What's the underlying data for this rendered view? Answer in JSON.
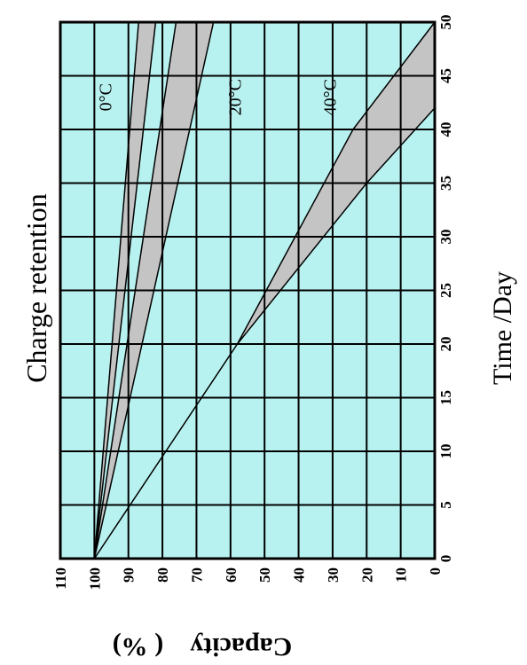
{
  "chart_data": {
    "type": "area",
    "title": "Charge retention",
    "xlabel": "Time /Day",
    "ylabel": "Capacity　( %)",
    "xlim": [
      0,
      50
    ],
    "ylim": [
      0,
      110
    ],
    "x_ticks": [
      "0",
      "5",
      "10",
      "15",
      "20",
      "25",
      "30",
      "35",
      "40",
      "45",
      "50"
    ],
    "y_ticks": [
      "110",
      "100",
      "90",
      "80",
      "70",
      "60",
      "50",
      "40",
      "30",
      "20",
      "10",
      "0"
    ],
    "grid": true,
    "orientation": "rotated-90-clockwise",
    "background_color": "#b8f2f0",
    "band_color": "#c4c4c4",
    "series": [
      {
        "name": "0°C",
        "label_at": {
          "x": 43,
          "y": 95
        },
        "upper": [
          {
            "x": 0,
            "y": 100
          },
          {
            "x": 50,
            "y": 87
          }
        ],
        "lower": [
          {
            "x": 0,
            "y": 100
          },
          {
            "x": 50,
            "y": 82
          }
        ]
      },
      {
        "name": "20°C",
        "label_at": {
          "x": 43,
          "y": 57
        },
        "upper": [
          {
            "x": 0,
            "y": 100
          },
          {
            "x": 50,
            "y": 76
          }
        ],
        "lower": [
          {
            "x": 0,
            "y": 100
          },
          {
            "x": 20,
            "y": 86
          },
          {
            "x": 40,
            "y": 72
          },
          {
            "x": 50,
            "y": 65
          }
        ]
      },
      {
        "name": "40°C",
        "label_at": {
          "x": 43,
          "y": 29
        },
        "upper": [
          {
            "x": 0,
            "y": 100
          },
          {
            "x": 20,
            "y": 58
          },
          {
            "x": 40,
            "y": 24
          },
          {
            "x": 50,
            "y": 0
          }
        ],
        "lower": [
          {
            "x": 0,
            "y": 100
          },
          {
            "x": 10,
            "y": 79
          },
          {
            "x": 20,
            "y": 58
          },
          {
            "x": 35,
            "y": 20
          },
          {
            "x": 42,
            "y": 0
          }
        ]
      }
    ]
  }
}
